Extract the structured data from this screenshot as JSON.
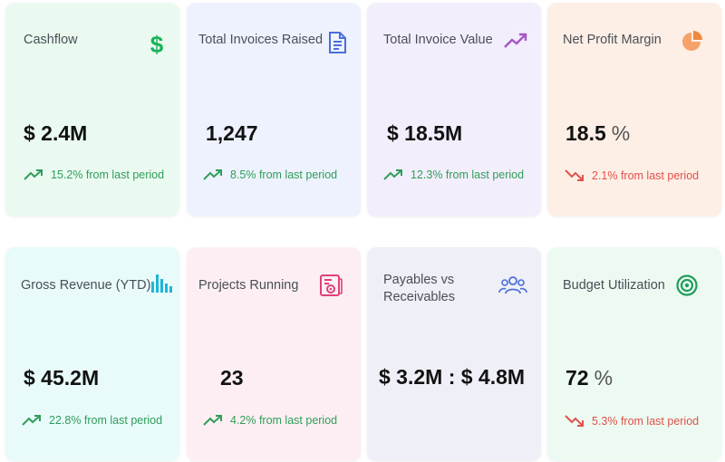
{
  "cards": [
    {
      "title": "Cashflow",
      "value": "$ 2.4M",
      "unit": "",
      "trend": "15.2% from last period",
      "direction": "up",
      "icon": "dollar-icon",
      "icon_color": "#16b35a"
    },
    {
      "title": "Total Invoices Raised",
      "value": "1,247",
      "unit": "",
      "trend": "8.5% from last period",
      "direction": "up",
      "icon": "document-icon",
      "icon_color": "#4a6fd8"
    },
    {
      "title": "Total Invoice Value",
      "value": "$ 18.5M",
      "unit": "",
      "trend": "12.3% from last period",
      "direction": "up",
      "icon": "trending-up-icon",
      "icon_color": "#a855c8"
    },
    {
      "title": "Net Profit Margin",
      "value": "18.5",
      "unit": "%",
      "trend": "2.1% from last period",
      "direction": "down",
      "icon": "pie-chart-icon",
      "icon_color": "#f0883e"
    },
    {
      "title": "Gross Revenue (YTD)",
      "value": "$ 45.2M",
      "unit": "",
      "trend": "22.8% from last period",
      "direction": "up",
      "icon": "bar-chart-icon",
      "icon_color": "#1fb6d6"
    },
    {
      "title": "Projects Running",
      "value": "23",
      "unit": "",
      "trend": "4.2% from last period",
      "direction": "up",
      "icon": "project-settings-icon",
      "icon_color": "#e0407a"
    },
    {
      "title": "Payables vs Receivables",
      "value": "$ 3.2M : $ 4.8M",
      "unit": "",
      "trend": "",
      "direction": "none",
      "icon": "users-icon",
      "icon_color": "#4a6fd8"
    },
    {
      "title": "Budget Utilization",
      "value": "72",
      "unit": "%",
      "trend": "5.3% from last period",
      "direction": "down",
      "icon": "target-icon",
      "icon_color": "#1f9e5a"
    }
  ],
  "colors": {
    "up": "#2f9e5a",
    "down": "#e0524a"
  }
}
